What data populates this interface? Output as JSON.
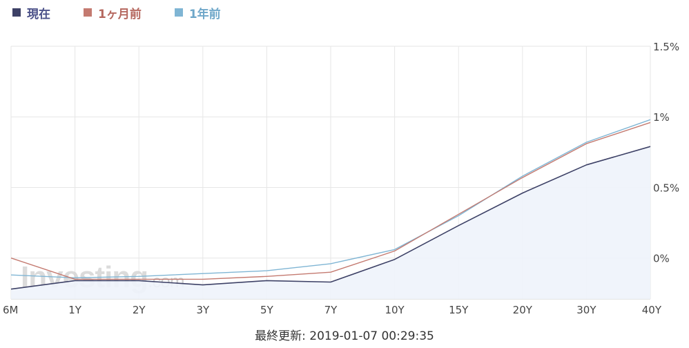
{
  "legend": [
    {
      "label": "現在",
      "color": "#3d4166",
      "text_color": "#4a5088"
    },
    {
      "label": "1ヶ月前",
      "color": "#c47a70",
      "text_color": "#b5675e"
    },
    {
      "label": "1年前",
      "color": "#7fb5d4",
      "text_color": "#6ea7c9"
    }
  ],
  "watermark": {
    "main": "Investing",
    "suffix": ".com"
  },
  "footer": {
    "label": "最終更新: 2019-01-07 00:29:35"
  },
  "chart_data": {
    "type": "line",
    "categories": [
      "6M",
      "1Y",
      "2Y",
      "3Y",
      "5Y",
      "7Y",
      "10Y",
      "15Y",
      "20Y",
      "30Y",
      "40Y"
    ],
    "y_ticks": [
      {
        "value": 1.5,
        "label": "1.5%"
      },
      {
        "value": 1.0,
        "label": "1%"
      },
      {
        "value": 0.5,
        "label": "0.5%"
      },
      {
        "value": 0.0,
        "label": "0%"
      }
    ],
    "ylim": [
      -0.29,
      1.5
    ],
    "grid": true,
    "legend_position": "top-left",
    "series": [
      {
        "name": "現在",
        "color": "#3d4166",
        "filled": true,
        "values": [
          -0.22,
          -0.16,
          -0.16,
          -0.19,
          -0.16,
          -0.17,
          -0.01,
          0.23,
          0.46,
          0.66,
          0.79
        ]
      },
      {
        "name": "1ヶ月前",
        "color": "#c47a70",
        "filled": false,
        "values": [
          0.0,
          -0.15,
          -0.15,
          -0.15,
          -0.13,
          -0.1,
          0.05,
          0.31,
          0.57,
          0.81,
          0.96
        ]
      },
      {
        "name": "1年前",
        "color": "#7fb5d4",
        "filled": false,
        "values": [
          -0.12,
          -0.14,
          -0.13,
          -0.11,
          -0.09,
          -0.04,
          0.06,
          0.3,
          0.58,
          0.82,
          0.98
        ]
      }
    ]
  }
}
